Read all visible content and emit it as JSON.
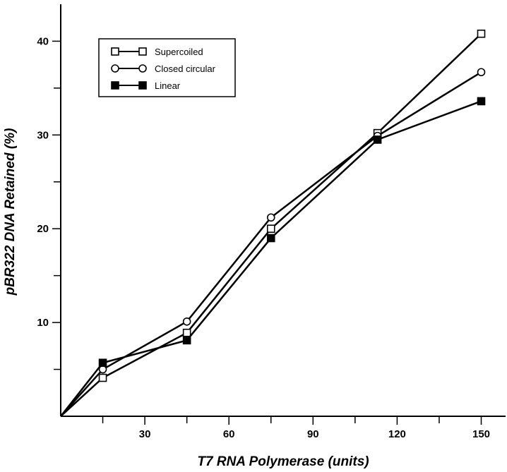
{
  "chart_data": {
    "type": "line",
    "xlabel": "T7 RNA Polymerase (units)",
    "ylabel": "pBR322 DNA Retained (%)",
    "xlim": [
      0,
      155
    ],
    "ylim": [
      0,
      44
    ],
    "x_ticks": [
      30,
      60,
      90,
      120,
      150
    ],
    "x_minor_ticks": [
      15,
      45,
      75,
      105,
      135
    ],
    "y_ticks": [
      10,
      20,
      30,
      40
    ],
    "y_minor_ticks": [
      5,
      15,
      25,
      35
    ],
    "grid": false,
    "legend_position": "top-left",
    "series": [
      {
        "name": "Supercoiled",
        "marker": "open-square",
        "x": [
          0,
          15,
          45,
          75,
          113,
          150
        ],
        "y": [
          0,
          4.1,
          8.9,
          20.0,
          30.2,
          40.8
        ]
      },
      {
        "name": "Closed circular",
        "marker": "open-circle",
        "x": [
          0,
          15,
          45,
          75,
          113,
          150
        ],
        "y": [
          0,
          5.0,
          10.1,
          21.2,
          29.9,
          36.7
        ]
      },
      {
        "name": "Linear",
        "marker": "filled-square",
        "x": [
          0,
          15,
          45,
          75,
          113,
          150
        ],
        "y": [
          0,
          5.7,
          8.1,
          19.0,
          29.5,
          33.6
        ]
      }
    ]
  }
}
